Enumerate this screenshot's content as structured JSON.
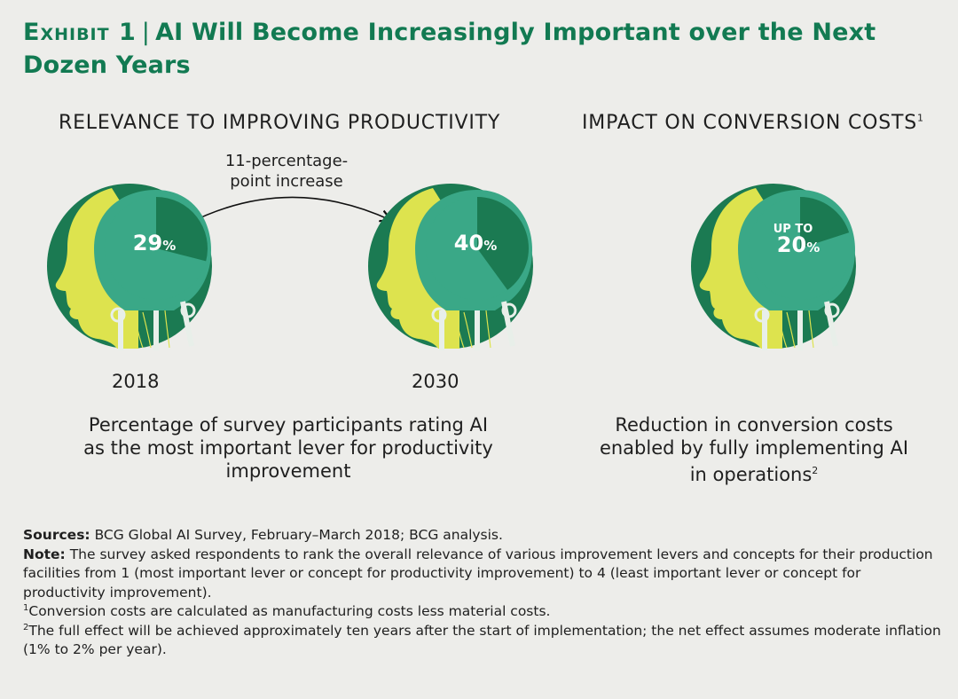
{
  "title": {
    "exhibit": "Exhibit 1",
    "separator": "|",
    "text": "AI Will Become Increasingly Important over the Next Dozen Years"
  },
  "colors": {
    "dark_green": "#1b7a52",
    "teal": "#3aa887",
    "lime": "#dde34e",
    "title_green": "#127a52",
    "background": "#ededea"
  },
  "chart_data": [
    {
      "type": "pie",
      "title": "RELEVANCE TO IMPROVING PRODUCTIVITY",
      "subtitle": "Percentage of survey participants rating AI as the most important lever for productivity improvement",
      "categories": [
        "2018",
        "2030"
      ],
      "values": [
        29,
        40
      ],
      "unit": "%",
      "annotation": "11-percentage-point increase"
    },
    {
      "type": "pie",
      "title": "IMPACT ON CONVERSION COSTS",
      "title_footnote": "1",
      "subtitle": "Reduction in conversion costs enabled by fully implementing AI in operations",
      "subtitle_footnote": "2",
      "values": [
        20
      ],
      "unit": "%",
      "value_prefix": "UP TO"
    }
  ],
  "labels": {
    "arrow_line1": "11-percentage-",
    "arrow_line2": "point increase",
    "pct_symbol": "%",
    "left_caption_l1": "Percentage of survey participants rating AI",
    "left_caption_l2": "as the most important lever for productivity",
    "left_caption_l3": "improvement",
    "right_caption_l1": "Reduction in conversion costs",
    "right_caption_l2": "enabled by fully implementing AI",
    "right_caption_l3": "in operations"
  },
  "notes": {
    "sources_label": "Sources:",
    "sources_text": "BCG Global AI Survey, February–March 2018; BCG analysis.",
    "note_label": "Note:",
    "note_text": "The survey asked respondents to rank the overall relevance of various improvement levers and concepts for their production facilities from 1 (most important lever or concept for productivity improvement) to 4 (least important lever or concept for productivity improvement).",
    "fn1_mark": "1",
    "fn1_text": "Conversion costs are calculated as manufacturing costs less material costs.",
    "fn2_mark": "2",
    "fn2_text": "The full effect will be achieved approximately ten years after the start of implementation; the net effect assumes moderate inflation (1% to 2% per year)."
  }
}
